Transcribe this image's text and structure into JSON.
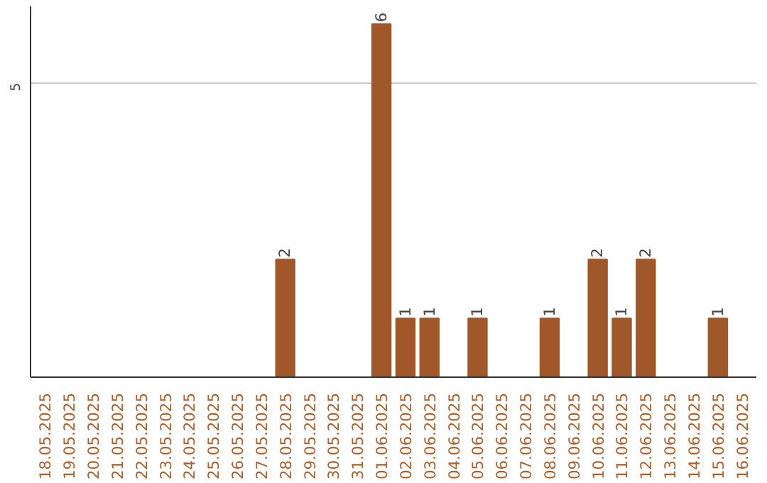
{
  "chart_data": {
    "type": "bar",
    "categories": [
      "18.05.2025",
      "19.05.2025",
      "20.05.2025",
      "21.05.2025",
      "22.05.2025",
      "23.05.2025",
      "24.05.2025",
      "25.05.2025",
      "26.05.2025",
      "27.05.2025",
      "28.05.2025",
      "29.05.2025",
      "30.05.2025",
      "31.05.2025",
      "01.06.2025",
      "02.06.2025",
      "03.06.2025",
      "04.06.2025",
      "05.06.2025",
      "06.06.2025",
      "07.06.2025",
      "08.06.2025",
      "09.06.2025",
      "10.06.2025",
      "11.06.2025",
      "12.06.2025",
      "13.06.2025",
      "14.06.2025",
      "15.06.2025",
      "16.06.2025"
    ],
    "values": [
      0,
      0,
      0,
      0,
      0,
      0,
      0,
      0,
      0,
      0,
      2,
      0,
      0,
      0,
      6,
      1,
      1,
      0,
      1,
      0,
      0,
      1,
      0,
      2,
      1,
      2,
      0,
      0,
      1,
      0
    ],
    "value_labels": [
      null,
      null,
      null,
      null,
      null,
      null,
      null,
      null,
      null,
      null,
      "2",
      null,
      null,
      null,
      "6",
      "1",
      "1",
      null,
      "1",
      null,
      null,
      "1",
      null,
      "2",
      "1",
      "2",
      null,
      null,
      "1",
      null
    ],
    "color": "#a0572a",
    "ylim": [
      0,
      6.3
    ],
    "yticks": [
      5
    ],
    "grid": "y"
  }
}
